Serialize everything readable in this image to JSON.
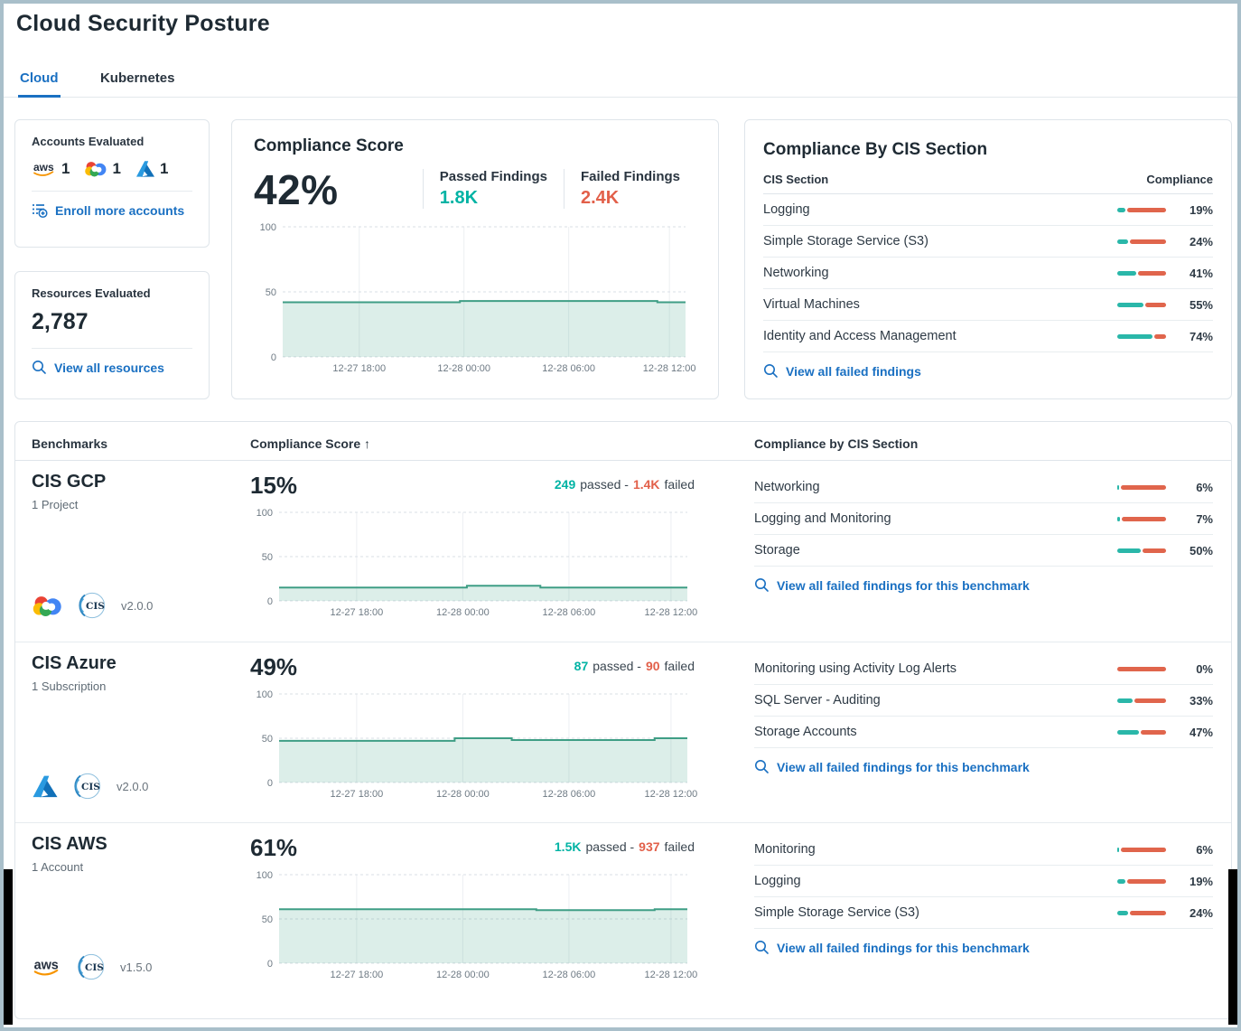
{
  "header": {
    "title": "Cloud Security Posture",
    "tabs": [
      {
        "label": "Cloud",
        "active": true
      },
      {
        "label": "Kubernetes",
        "active": false
      }
    ]
  },
  "labels": {
    "passed_sep": "passed -",
    "failed_word": "failed"
  },
  "colors": {
    "accent_blue": "#1a70c2",
    "teal_text": "#00b3a4",
    "red_text": "#e2604a",
    "chart_line": "#3f9e85",
    "chart_fill": "rgba(63,158,133,0.18)",
    "bar_teal": "#2ab7a9",
    "bar_red": "#e0654c"
  },
  "accounts_card": {
    "title": "Accounts Evaluated",
    "providers": [
      {
        "name": "aws",
        "count": "1"
      },
      {
        "name": "gcp",
        "count": "1"
      },
      {
        "name": "azure",
        "count": "1"
      }
    ],
    "link": "Enroll more accounts"
  },
  "resources_card": {
    "title": "Resources Evaluated",
    "value": "2,787",
    "link": "View all resources"
  },
  "score_card": {
    "title": "Compliance Score",
    "score": "42%",
    "passed_label": "Passed Findings",
    "passed_value": "1.8K",
    "failed_label": "Failed Findings",
    "failed_value": "2.4K"
  },
  "cis_card": {
    "title": "Compliance By CIS Section",
    "col_section": "CIS Section",
    "col_compliance": "Compliance",
    "rows": [
      {
        "label": "Logging",
        "pct": 19,
        "pct_label": "19%"
      },
      {
        "label": "Simple Storage Service (S3)",
        "pct": 24,
        "pct_label": "24%"
      },
      {
        "label": "Networking",
        "pct": 41,
        "pct_label": "41%"
      },
      {
        "label": "Virtual Machines",
        "pct": 55,
        "pct_label": "55%"
      },
      {
        "label": "Identity and Access Management",
        "pct": 74,
        "pct_label": "74%"
      }
    ],
    "link": "View all failed findings"
  },
  "benchmarks_table": {
    "col_benchmarks": "Benchmarks",
    "col_score": "Compliance Score",
    "sort_arrow": "↑",
    "col_cis": "Compliance by CIS Section",
    "rows": [
      {
        "name": "CIS GCP",
        "scope": "1 Project",
        "provider": "gcp",
        "version": "v2.0.0",
        "score": "15%",
        "passed": "249",
        "failed": "1.4K",
        "sections": [
          {
            "label": "Networking",
            "pct": 6,
            "pct_label": "6%"
          },
          {
            "label": "Logging and Monitoring",
            "pct": 7,
            "pct_label": "7%"
          },
          {
            "label": "Storage",
            "pct": 50,
            "pct_label": "50%"
          }
        ],
        "link": "View all failed findings for this benchmark"
      },
      {
        "name": "CIS Azure",
        "scope": "1 Subscription",
        "provider": "azure",
        "version": "v2.0.0",
        "score": "49%",
        "passed": "87",
        "failed": "90",
        "sections": [
          {
            "label": "Monitoring using Activity Log Alerts",
            "pct": 0,
            "pct_label": "0%"
          },
          {
            "label": "SQL Server - Auditing",
            "pct": 33,
            "pct_label": "33%"
          },
          {
            "label": "Storage Accounts",
            "pct": 47,
            "pct_label": "47%"
          }
        ],
        "link": "View all failed findings for this benchmark"
      },
      {
        "name": "CIS AWS",
        "scope": "1 Account",
        "provider": "aws",
        "version": "v1.5.0",
        "score": "61%",
        "passed": "1.5K",
        "failed": "937",
        "sections": [
          {
            "label": "Monitoring",
            "pct": 6,
            "pct_label": "6%"
          },
          {
            "label": "Logging",
            "pct": 19,
            "pct_label": "19%"
          },
          {
            "label": "Simple Storage Service (S3)",
            "pct": 24,
            "pct_label": "24%"
          }
        ],
        "link": "View all failed findings for this benchmark"
      }
    ]
  },
  "chart_data": [
    {
      "id": "overview-score-trend",
      "type": "area",
      "ylim": [
        0,
        100
      ],
      "y_ticks": [
        0,
        50,
        100
      ],
      "x_ticks": [
        {
          "label": "12-27 18:00",
          "f": 0.19
        },
        {
          "label": "12-28 00:00",
          "f": 0.45
        },
        {
          "label": "12-28 06:00",
          "f": 0.71
        },
        {
          "label": "12-28 12:00",
          "f": 0.96
        }
      ],
      "points": [
        [
          0,
          42
        ],
        [
          0.44,
          42
        ],
        [
          0.44,
          43
        ],
        [
          0.93,
          43
        ],
        [
          0.93,
          42
        ],
        [
          1,
          42
        ]
      ]
    },
    {
      "id": "cis-gcp-score-trend",
      "type": "area",
      "ylim": [
        0,
        100
      ],
      "y_ticks": [
        0,
        50,
        100
      ],
      "x_ticks": [
        {
          "label": "12-27 18:00",
          "f": 0.19
        },
        {
          "label": "12-28 00:00",
          "f": 0.45
        },
        {
          "label": "12-28 06:00",
          "f": 0.71
        },
        {
          "label": "12-28 12:00",
          "f": 0.96
        }
      ],
      "points": [
        [
          0,
          15
        ],
        [
          0.46,
          15
        ],
        [
          0.46,
          17
        ],
        [
          0.64,
          17
        ],
        [
          0.64,
          15
        ],
        [
          1,
          15
        ]
      ]
    },
    {
      "id": "cis-azure-score-trend",
      "type": "area",
      "ylim": [
        0,
        100
      ],
      "y_ticks": [
        0,
        50,
        100
      ],
      "x_ticks": [
        {
          "label": "12-27 18:00",
          "f": 0.19
        },
        {
          "label": "12-28 00:00",
          "f": 0.45
        },
        {
          "label": "12-28 06:00",
          "f": 0.71
        },
        {
          "label": "12-28 12:00",
          "f": 0.96
        }
      ],
      "points": [
        [
          0,
          47
        ],
        [
          0.43,
          47
        ],
        [
          0.43,
          50
        ],
        [
          0.57,
          50
        ],
        [
          0.57,
          48
        ],
        [
          0.92,
          48
        ],
        [
          0.92,
          50
        ],
        [
          1,
          50
        ]
      ]
    },
    {
      "id": "cis-aws-score-trend",
      "type": "area",
      "ylim": [
        0,
        100
      ],
      "y_ticks": [
        0,
        50,
        100
      ],
      "x_ticks": [
        {
          "label": "12-27 18:00",
          "f": 0.19
        },
        {
          "label": "12-28 00:00",
          "f": 0.45
        },
        {
          "label": "12-28 06:00",
          "f": 0.71
        },
        {
          "label": "12-28 12:00",
          "f": 0.96
        }
      ],
      "points": [
        [
          0,
          61
        ],
        [
          0.63,
          61
        ],
        [
          0.63,
          60
        ],
        [
          0.92,
          60
        ],
        [
          0.92,
          61
        ],
        [
          1,
          61
        ]
      ]
    }
  ]
}
